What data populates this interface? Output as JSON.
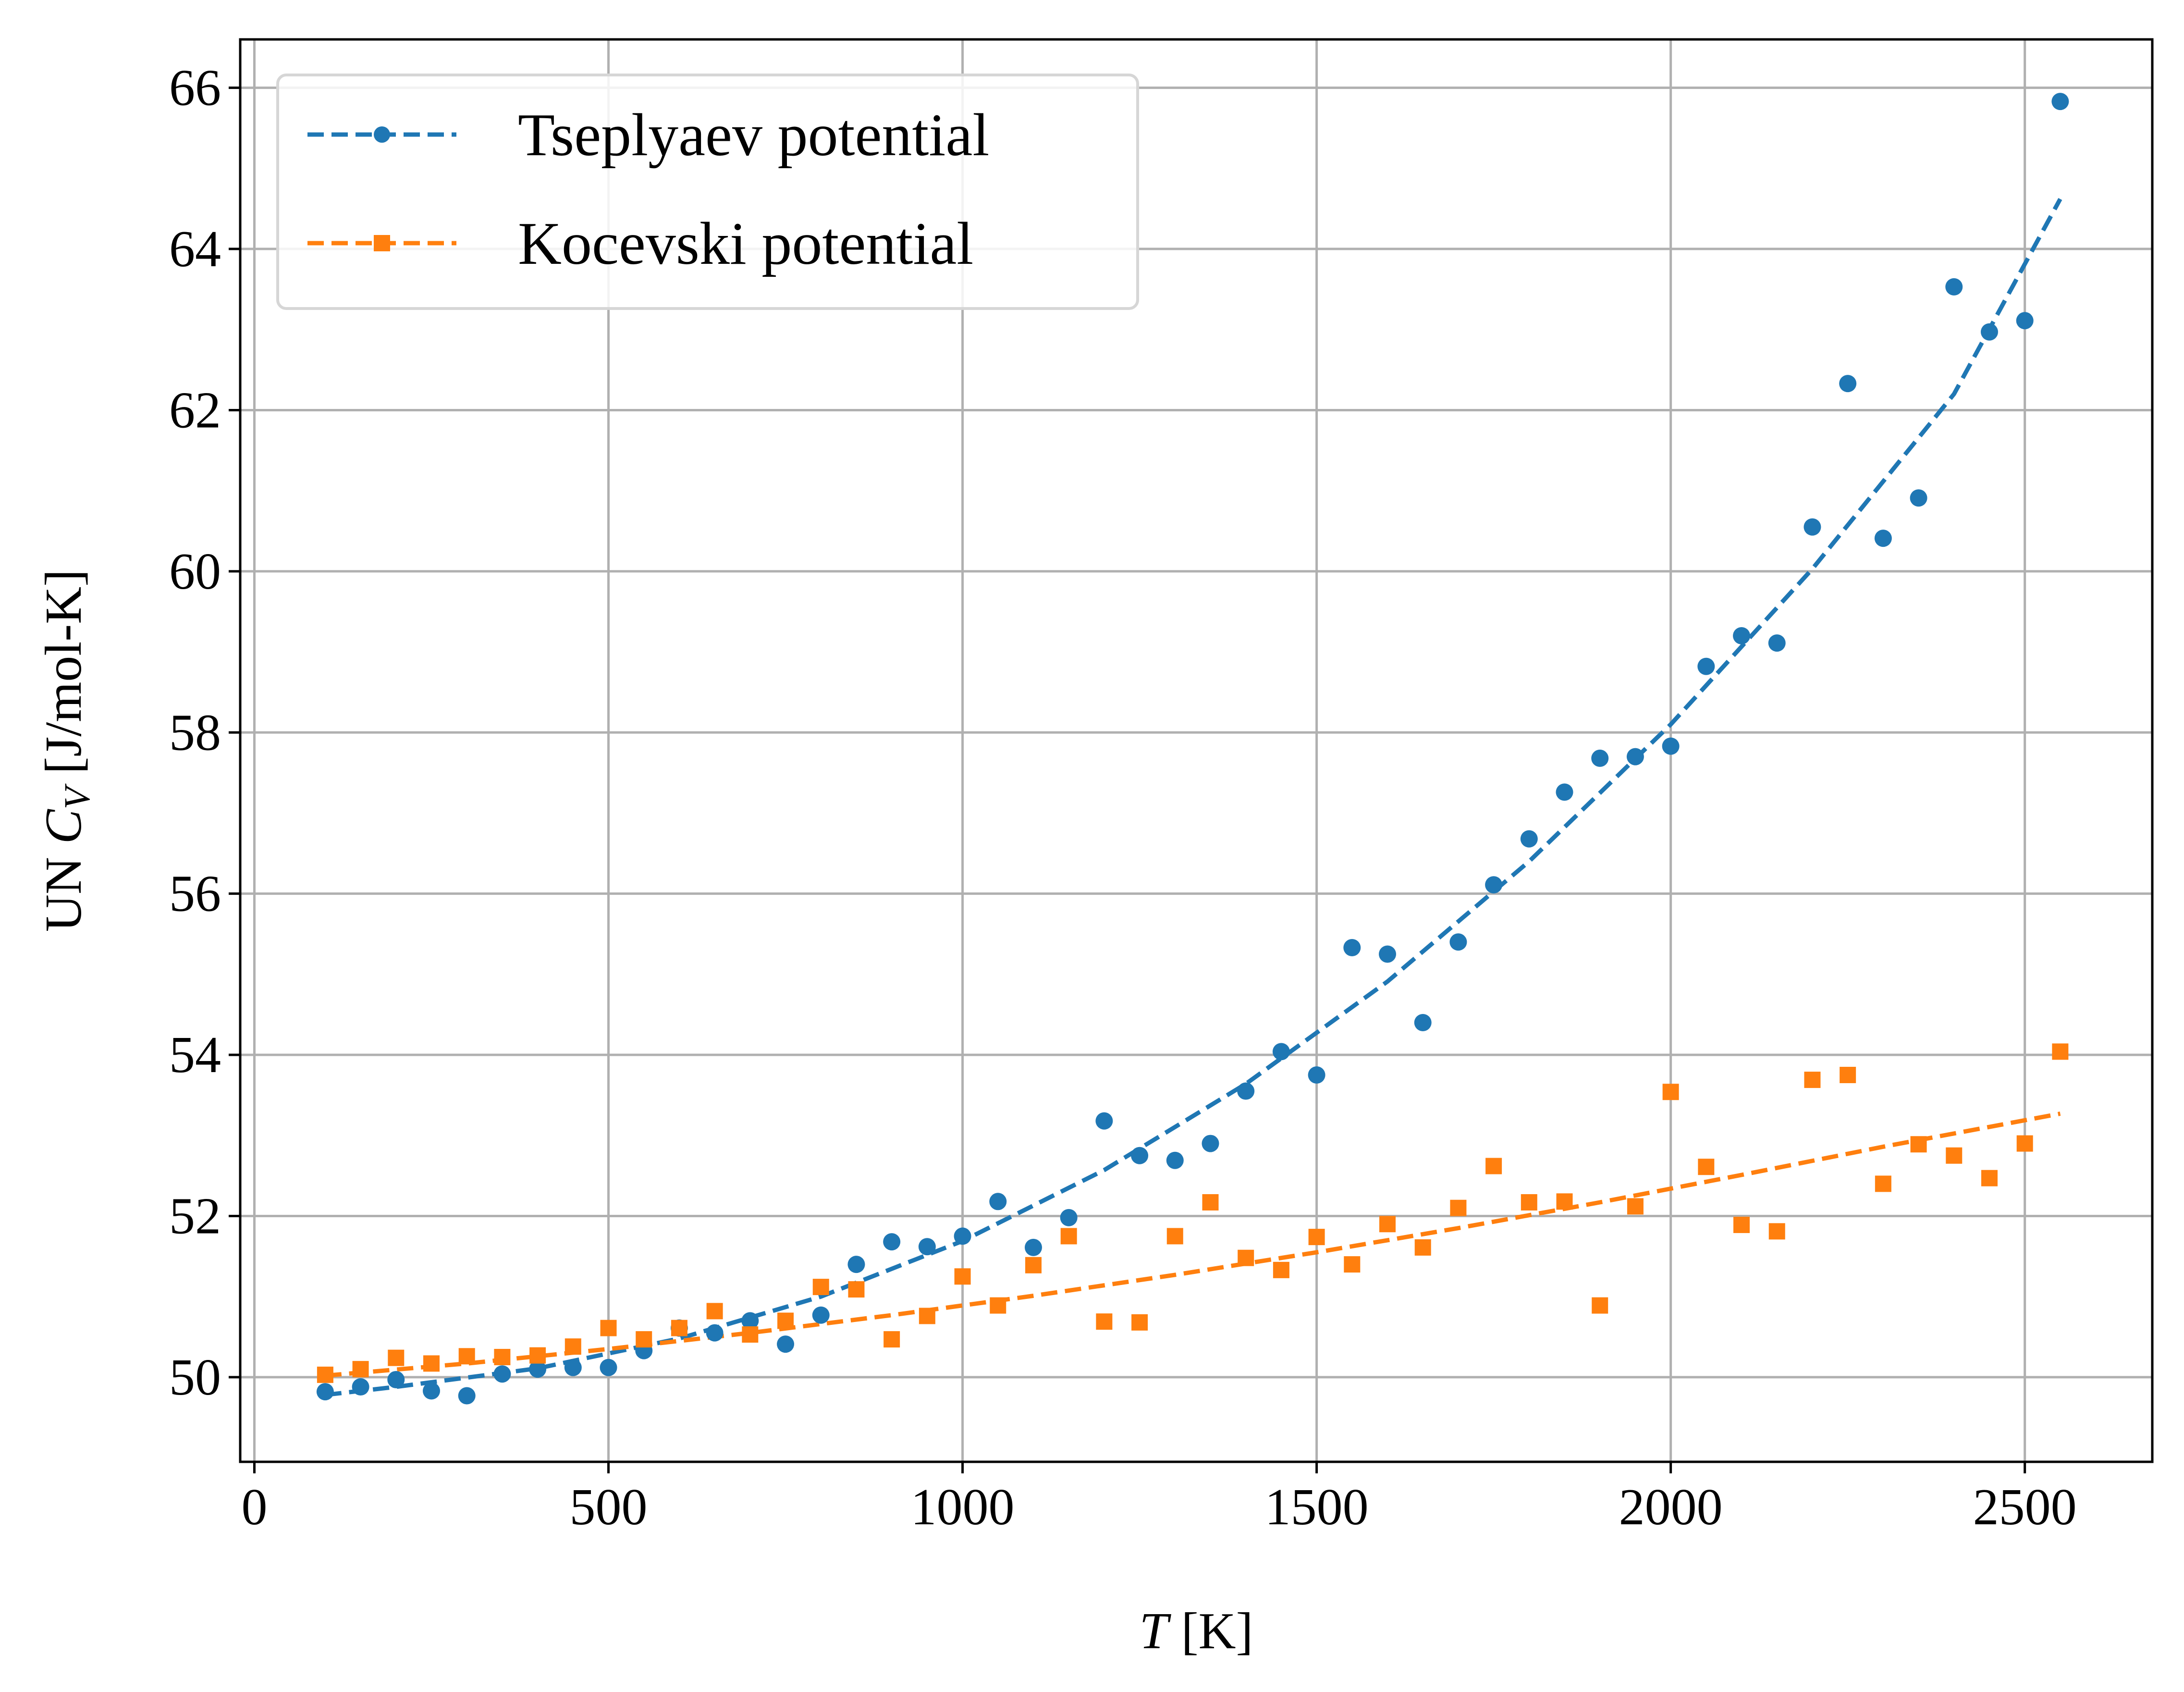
{
  "chart_data": {
    "type": "scatter",
    "xlabel_italic": "T",
    "xlabel_rest": " [K]",
    "ylabel_prefix": "UN ",
    "ylabel_var": "C",
    "ylabel_sub": "V",
    "ylabel_suffix": " [J/mol-K]",
    "xlim": [
      -20,
      2680
    ],
    "ylim": [
      48.95,
      66.6
    ],
    "xticks": [
      0,
      500,
      1000,
      1500,
      2000,
      2500
    ],
    "yticks": [
      50,
      52,
      54,
      56,
      58,
      60,
      62,
      64,
      66
    ],
    "grid": true,
    "legend_position": "top-left",
    "series": [
      {
        "name": "Tseplyaev potential",
        "color": "#1f77b4",
        "marker": "circle",
        "x": [
          100,
          150,
          200,
          250,
          300,
          350,
          400,
          450,
          500,
          550,
          600,
          650,
          700,
          750,
          800,
          850,
          900,
          950,
          1000,
          1050,
          1100,
          1150,
          1200,
          1250,
          1300,
          1350,
          1400,
          1450,
          1500,
          1550,
          1600,
          1650,
          1700,
          1750,
          1800,
          1850,
          1900,
          1950,
          2000,
          2050,
          2100,
          2150,
          2200,
          2250,
          2300,
          2350,
          2400,
          2450,
          2500,
          2550
        ],
        "y": [
          49.82,
          49.88,
          49.97,
          49.83,
          49.77,
          50.04,
          50.1,
          50.12,
          50.12,
          50.33,
          50.61,
          50.55,
          50.7,
          50.41,
          50.77,
          51.4,
          51.68,
          51.62,
          51.75,
          52.18,
          51.61,
          51.98,
          53.18,
          52.75,
          52.69,
          52.9,
          53.55,
          54.04,
          53.75,
          55.33,
          55.25,
          54.4,
          55.4,
          56.11,
          56.68,
          57.26,
          57.68,
          57.7,
          57.83,
          58.82,
          59.2,
          59.11,
          60.55,
          62.33,
          60.41,
          60.91,
          63.53,
          62.97,
          63.11,
          65.83
        ],
        "fit": {
          "x": [
            100,
            200,
            400,
            600,
            800,
            1000,
            1200,
            1400,
            1600,
            1800,
            2000,
            2200,
            2400,
            2550
          ],
          "y": [
            49.78,
            49.88,
            50.11,
            50.48,
            51.0,
            51.69,
            52.57,
            53.64,
            54.91,
            56.4,
            58.1,
            60.03,
            62.2,
            64.62
          ]
        }
      },
      {
        "name": "Kocevski potential",
        "color": "#ff7f0e",
        "marker": "square",
        "x": [
          100,
          150,
          200,
          250,
          300,
          350,
          400,
          450,
          500,
          550,
          600,
          650,
          700,
          750,
          800,
          850,
          900,
          950,
          1000,
          1050,
          1100,
          1150,
          1200,
          1250,
          1300,
          1350,
          1400,
          1450,
          1500,
          1550,
          1600,
          1650,
          1700,
          1750,
          1800,
          1850,
          1900,
          1950,
          2000,
          2050,
          2100,
          2150,
          2200,
          2250,
          2300,
          2350,
          2400,
          2450,
          2500,
          2550
        ],
        "y": [
          50.03,
          50.1,
          50.24,
          50.17,
          50.26,
          50.25,
          50.27,
          50.38,
          50.61,
          50.47,
          50.61,
          50.82,
          50.53,
          50.7,
          51.12,
          51.09,
          50.47,
          50.76,
          51.25,
          50.89,
          51.39,
          51.75,
          50.69,
          50.68,
          51.75,
          52.17,
          51.48,
          51.33,
          51.74,
          51.4,
          51.9,
          51.61,
          52.1,
          52.62,
          52.17,
          52.18,
          50.89,
          52.12,
          53.54,
          52.61,
          51.89,
          51.81,
          53.69,
          53.75,
          52.4,
          52.89,
          52.75,
          52.47,
          52.9,
          54.04
        ],
        "fit": {
          "x": [
            100,
            300,
            500,
            700,
            900,
            1100,
            1300,
            1500,
            1700,
            1900,
            2100,
            2300,
            2550
          ],
          "y": [
            50.02,
            50.17,
            50.35,
            50.55,
            50.77,
            51.01,
            51.27,
            51.55,
            51.85,
            52.17,
            52.51,
            52.86,
            53.27
          ]
        }
      }
    ]
  }
}
